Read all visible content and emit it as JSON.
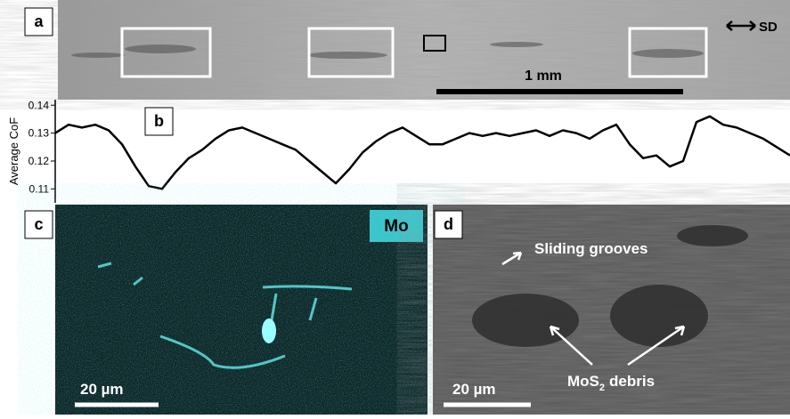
{
  "panels": {
    "a": {
      "label": "a",
      "direction": "SD",
      "scale_bar": "1 mm"
    },
    "c": {
      "label": "c",
      "element": "Mo",
      "scale_bar": "20 µm"
    },
    "d": {
      "label": "d",
      "annotation": "Sliding grooves",
      "debris": {
        "main": "MoS",
        "subscript": "2",
        "rest": "debris"
      },
      "scale_bar": "20 µm"
    }
  },
  "chart_data": {
    "type": "line",
    "label": "b",
    "y_label": "Average CoF",
    "color": "#000000",
    "ylim": [
      0.105,
      0.142
    ],
    "yticks": [
      0.11,
      0.12,
      0.13,
      0.14
    ],
    "values": [
      0.13,
      0.133,
      0.132,
      0.133,
      0.131,
      0.126,
      0.118,
      0.111,
      0.11,
      0.116,
      0.121,
      0.124,
      0.128,
      0.131,
      0.132,
      0.13,
      0.128,
      0.126,
      0.124,
      0.12,
      0.116,
      0.112,
      0.117,
      0.123,
      0.127,
      0.13,
      0.132,
      0.129,
      0.126,
      0.126,
      0.128,
      0.13,
      0.129,
      0.13,
      0.129,
      0.13,
      0.131,
      0.129,
      0.131,
      0.13,
      0.128,
      0.131,
      0.133,
      0.126,
      0.121,
      0.122,
      0.118,
      0.12,
      0.134,
      0.136,
      0.133,
      0.132,
      0.13,
      0.128,
      0.125,
      0.122
    ]
  }
}
